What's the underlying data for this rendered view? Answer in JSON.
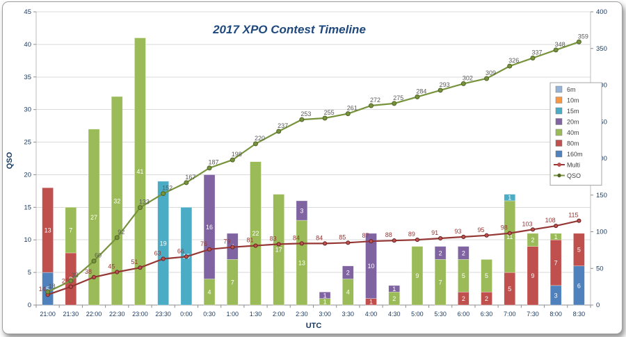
{
  "chart_data": {
    "type": "combo-stacked-bar-line",
    "title": "2017 XPO Contest Timeline",
    "categories": [
      "21:00",
      "21:30",
      "22:00",
      "22:30",
      "23:00",
      "23:30",
      "0:00",
      "0:30",
      "1:00",
      "1:30",
      "2:00",
      "2:30",
      "3:00",
      "3:30",
      "4:00",
      "4:30",
      "5:00",
      "5:30",
      "6:00",
      "6:30",
      "7:00",
      "7:30",
      "8:00",
      "8:30"
    ],
    "axes": {
      "left": {
        "min": 0,
        "max": 45,
        "step": 5,
        "title": "QSO"
      },
      "right": {
        "min": 0,
        "max": 400,
        "step": 50
      },
      "x": {
        "title": "UTC"
      }
    },
    "grid": "horizontal",
    "stack_order_bottom_to_top": [
      "160m",
      "80m",
      "40m",
      "20m",
      "15m",
      "10m",
      "6m"
    ],
    "bar_series": [
      {
        "name": "6m",
        "color": "#95B3D7",
        "values": [
          0,
          0,
          0,
          0,
          0,
          0,
          0,
          0,
          0,
          0,
          0,
          0,
          0,
          0,
          0,
          0,
          0,
          0,
          0,
          0,
          0,
          0,
          0,
          0
        ]
      },
      {
        "name": "10m",
        "color": "#F79646",
        "values": [
          0,
          0,
          0,
          0,
          0,
          0,
          0,
          0,
          0,
          0,
          0,
          0,
          0,
          0,
          0,
          0,
          0,
          0,
          0,
          0,
          0,
          0,
          0,
          0
        ]
      },
      {
        "name": "15m",
        "color": "#4BACC6",
        "values": [
          0,
          0,
          0,
          0,
          0,
          19,
          15,
          0,
          0,
          0,
          0,
          0,
          0,
          0,
          0,
          0,
          0,
          0,
          0,
          0,
          1,
          0,
          0,
          0
        ]
      },
      {
        "name": "20m",
        "color": "#8064A2",
        "values": [
          0,
          0,
          0,
          0,
          0,
          0,
          0,
          16,
          4,
          0,
          0,
          3,
          1,
          2,
          10,
          1,
          0,
          2,
          2,
          0,
          0,
          0,
          0,
          0
        ]
      },
      {
        "name": "40m",
        "color": "#9BBB59",
        "values": [
          0,
          7,
          27,
          32,
          41,
          0,
          0,
          4,
          7,
          22,
          17,
          13,
          1,
          4,
          0,
          2,
          9,
          7,
          5,
          5,
          11,
          2,
          1,
          0
        ]
      },
      {
        "name": "80m",
        "color": "#C0504D",
        "values": [
          13,
          8,
          0,
          0,
          0,
          0,
          0,
          0,
          0,
          0,
          0,
          0,
          0,
          0,
          1,
          0,
          0,
          0,
          2,
          2,
          5,
          9,
          7,
          5
        ]
      },
      {
        "name": "160m",
        "color": "#4F81BD",
        "values": [
          5,
          0,
          0,
          0,
          0,
          0,
          0,
          0,
          0,
          0,
          0,
          0,
          0,
          0,
          0,
          0,
          0,
          0,
          0,
          0,
          0,
          0,
          3,
          6
        ]
      }
    ],
    "line_series": [
      {
        "name": "Multi",
        "axis": "right",
        "color": "#953735",
        "marker_fill": "#C0504D",
        "marker_edge": "#632423",
        "label_color": "#943634",
        "values": [
          14,
          25,
          38,
          45,
          51,
          63,
          66,
          76,
          79,
          81,
          83,
          84,
          84,
          85,
          87,
          88,
          89,
          91,
          93,
          95,
          98,
          103,
          108,
          115
        ]
      },
      {
        "name": "QSO",
        "axis": "right",
        "color": "#77933C",
        "marker_fill": "#77933C",
        "marker_edge": "#4F6228",
        "label_color": "#595959",
        "values": [
          18,
          33,
          60,
          92,
          133,
          152,
          167,
          187,
          198,
          220,
          237,
          253,
          255,
          261,
          272,
          275,
          284,
          293,
          302,
          309,
          326,
          337,
          348,
          359
        ]
      }
    ],
    "legend": [
      {
        "label": "6m",
        "type": "swatch",
        "color": "#95B3D7"
      },
      {
        "label": "10m",
        "type": "swatch",
        "color": "#F79646"
      },
      {
        "label": "15m",
        "type": "swatch",
        "color": "#4BACC6"
      },
      {
        "label": "20m",
        "type": "swatch",
        "color": "#8064A2"
      },
      {
        "label": "40m",
        "type": "swatch",
        "color": "#9BBB59"
      },
      {
        "label": "80m",
        "type": "swatch",
        "color": "#C0504D"
      },
      {
        "label": "160m",
        "type": "swatch",
        "color": "#4F81BD"
      },
      {
        "label": "Multi",
        "type": "line",
        "color": "#953735",
        "marker": "#C0504D"
      },
      {
        "label": "QSO",
        "type": "line",
        "color": "#77933C",
        "marker": "#4F6228"
      }
    ]
  }
}
